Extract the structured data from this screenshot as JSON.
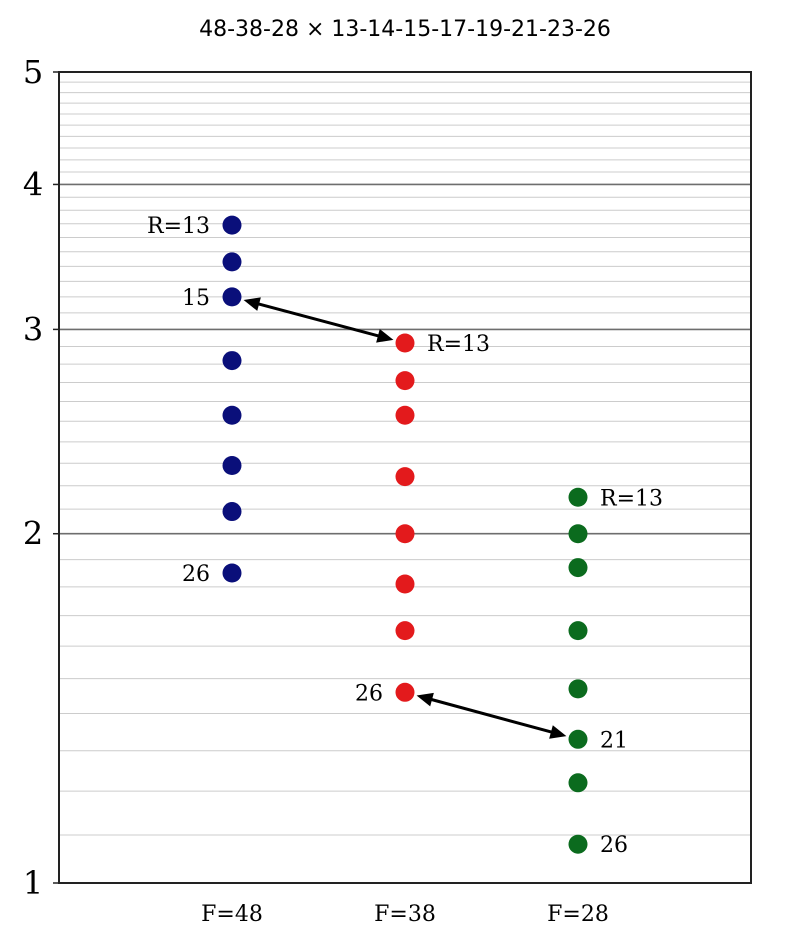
{
  "chart_data": {
    "type": "scatter",
    "title": "48-38-28 × 13-14-15-17-19-21-23-26",
    "xlabel": "",
    "ylabel": "",
    "y_scale": "log",
    "ylim": [
      1,
      5
    ],
    "y_ticks": [
      "1",
      "2",
      "3",
      "4",
      "5"
    ],
    "grid": true,
    "categories": [
      "F=48",
      "F=38",
      "F=28"
    ],
    "cogs": [
      13,
      14,
      15,
      17,
      19,
      21,
      23,
      26
    ],
    "series": [
      {
        "category": "F=48",
        "color": "#0a0f7a",
        "values": [
          3.69,
          3.43,
          3.2,
          2.82,
          2.53,
          2.29,
          2.09,
          1.85
        ],
        "labels": [
          {
            "cog": 13,
            "text": "R=13",
            "side": "left"
          },
          {
            "cog": 15,
            "text": "15",
            "side": "left"
          },
          {
            "cog": 26,
            "text": "26",
            "side": "left"
          }
        ]
      },
      {
        "category": "F=38",
        "color": "#e31a1c",
        "values": [
          2.92,
          2.71,
          2.53,
          2.24,
          2.0,
          1.81,
          1.65,
          1.46
        ],
        "labels": [
          {
            "cog": 13,
            "text": "R=13",
            "side": "right"
          },
          {
            "cog": 26,
            "text": "26",
            "side": "left"
          }
        ]
      },
      {
        "category": "F=28",
        "color": "#0b6b1e",
        "values": [
          2.15,
          2.0,
          1.87,
          1.65,
          1.47,
          1.33,
          1.22,
          1.08
        ],
        "labels": [
          {
            "cog": 13,
            "text": "R=13",
            "side": "right"
          },
          {
            "cog": 21,
            "text": "21",
            "side": "right"
          },
          {
            "cog": 26,
            "text": "26",
            "side": "right"
          }
        ]
      }
    ],
    "arrows": [
      {
        "from": {
          "category": "F=48",
          "cog": 15
        },
        "to": {
          "category": "F=38",
          "cog": 13
        }
      },
      {
        "from": {
          "category": "F=38",
          "cog": 26
        },
        "to": {
          "category": "F=28",
          "cog": 21
        }
      }
    ]
  }
}
